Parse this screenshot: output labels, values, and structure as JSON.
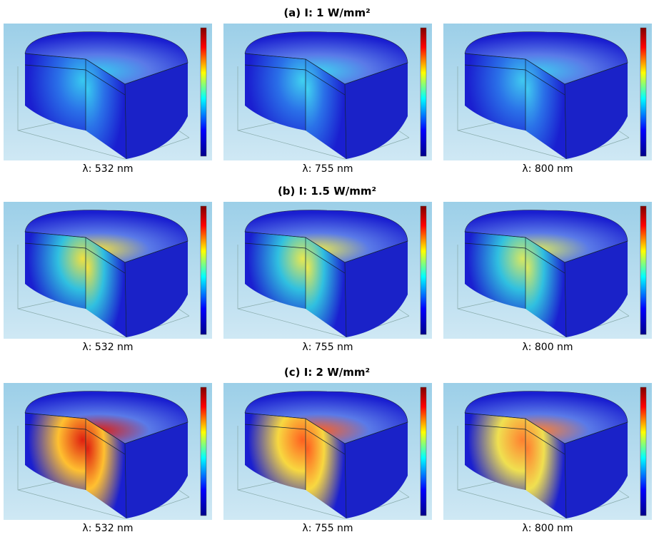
{
  "rows": [
    {
      "title": "(a) I: 1 W/mm²",
      "panels": [
        {
          "caption": "λ: 532 nm"
        },
        {
          "caption": "λ: 755 nm"
        },
        {
          "caption": "λ: 800 nm"
        }
      ]
    },
    {
      "title": "(b) I: 1.5 W/mm²",
      "panels": [
        {
          "caption": "λ: 532 nm"
        },
        {
          "caption": "λ: 755 nm"
        },
        {
          "caption": "λ: 800 nm"
        }
      ]
    },
    {
      "title": "(c) I: 2 W/mm²",
      "panels": [
        {
          "caption": "λ: 532 nm"
        },
        {
          "caption": "λ: 755 nm"
        },
        {
          "caption": "λ: 800 nm"
        }
      ]
    }
  ]
}
